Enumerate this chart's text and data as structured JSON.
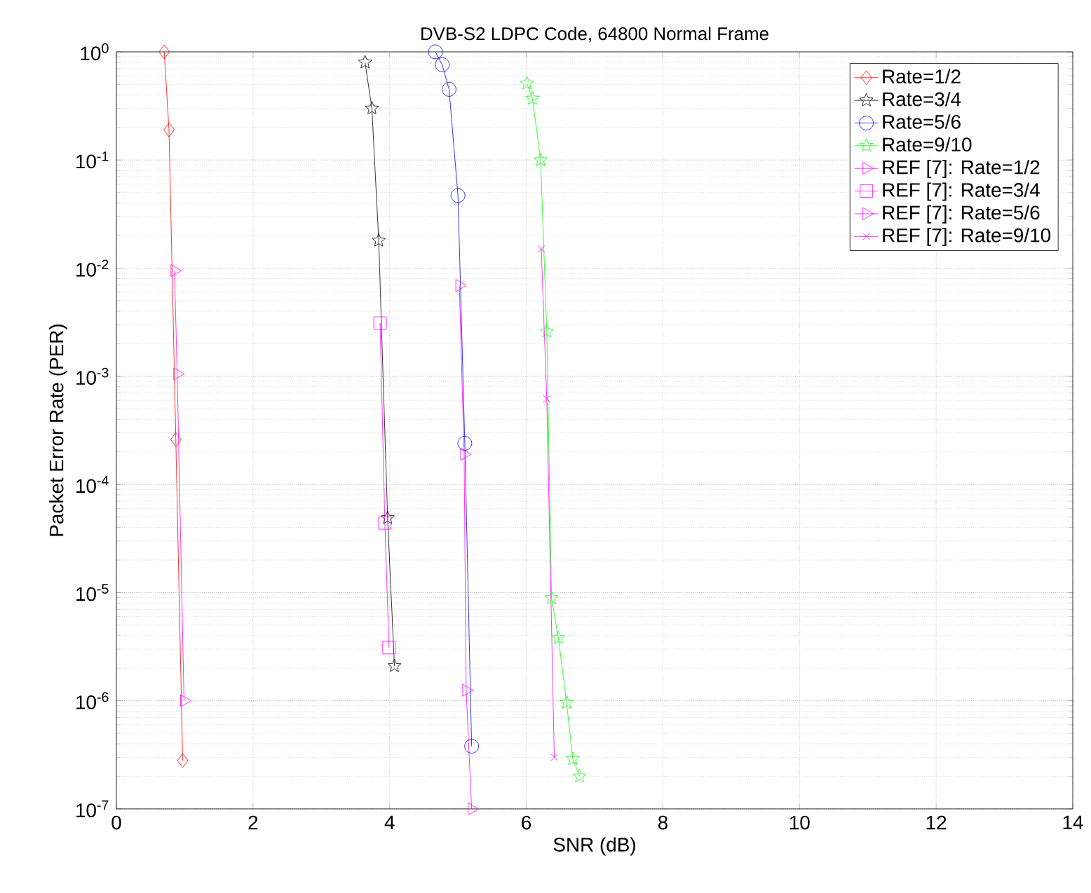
{
  "chart_data": {
    "type": "line",
    "title": "DVB-S2 LDPC Code, 64800 Normal Frame",
    "xlabel": "SNR (dB)",
    "ylabel": "Packet Error Rate (PER)",
    "log": "y",
    "grid": true,
    "legend": "top right",
    "xlim": [
      0,
      14
    ],
    "xticks": [
      0,
      2,
      4,
      6,
      8,
      10,
      12,
      14
    ],
    "ylim": [
      1e-07,
      1
    ],
    "yticks": [
      {
        "value": 1e-07,
        "label": "10$^{-7}$"
      },
      {
        "value": 1e-06,
        "label": "10$^{-6}$"
      },
      {
        "value": 1e-05,
        "label": "10$^{-5}$"
      },
      {
        "value": 0.0001,
        "label": "10$^{-4}$"
      },
      {
        "value": 0.001,
        "label": "10$^{-3}$"
      },
      {
        "value": 0.01,
        "label": "10$^{-2}$"
      },
      {
        "value": 0.1,
        "label": "10$^{-1}$"
      },
      {
        "value": 1,
        "label": "10$^{0}$"
      }
    ],
    "series": [
      {
        "name": "Rate=1/2",
        "color": "#ff0000",
        "marker": "diamond",
        "x": [
          0.7,
          0.77,
          0.87,
          0.97
        ],
        "values": [
          1,
          0.19,
          0.00026,
          2.8e-07
        ]
      },
      {
        "name": "Rate=3/4",
        "color": "#000000",
        "marker": "star",
        "x": [
          3.64,
          3.74,
          3.84,
          3.97,
          4.07
        ],
        "values": [
          0.8,
          0.3,
          0.018,
          4.9e-05,
          2.1e-06
        ]
      },
      {
        "name": "Rate=5/6",
        "color": "#0000ff",
        "marker": "circle",
        "x": [
          4.67,
          4.77,
          4.87,
          5.0,
          5.1,
          5.2
        ],
        "values": [
          1,
          0.76,
          0.45,
          0.047,
          0.00024,
          3.8e-07
        ]
      },
      {
        "name": "Rate=9/10",
        "color": "#00ff00",
        "marker": "star",
        "x": [
          6.01,
          6.09,
          6.21,
          6.3,
          6.37,
          6.47,
          6.59,
          6.68,
          6.78
        ],
        "values": [
          0.51,
          0.37,
          0.1,
          0.0026,
          8.9e-06,
          3.8e-06,
          9.6e-07,
          2.9e-07,
          2e-07
        ]
      },
      {
        "name": "REF [7]: Rate=1/2",
        "color": "#ff00ff",
        "marker": "triangle",
        "x": [
          0.85,
          0.89,
          0.99
        ],
        "values": [
          0.0095,
          0.00105,
          1e-06
        ]
      },
      {
        "name": "REF [7]: Rate=3/4",
        "color": "#ff00ff",
        "marker": "square",
        "x": [
          3.86,
          3.93,
          3.99
        ],
        "values": [
          0.0031,
          4.4e-05,
          3.1e-06
        ]
      },
      {
        "name": "REF [7]: Rate=5/6",
        "color": "#ff00ff",
        "marker": "triangle",
        "x": [
          5.02,
          5.09,
          5.12,
          5.2
        ],
        "values": [
          0.0069,
          0.00019,
          1.25e-06,
          1e-07
        ]
      },
      {
        "name": "REF [7]: Rate=9/10",
        "color": "#ff00ff",
        "marker": "cross",
        "x": [
          6.22,
          6.3,
          6.41
        ],
        "values": [
          0.015,
          0.00062,
          3e-07
        ]
      }
    ]
  }
}
